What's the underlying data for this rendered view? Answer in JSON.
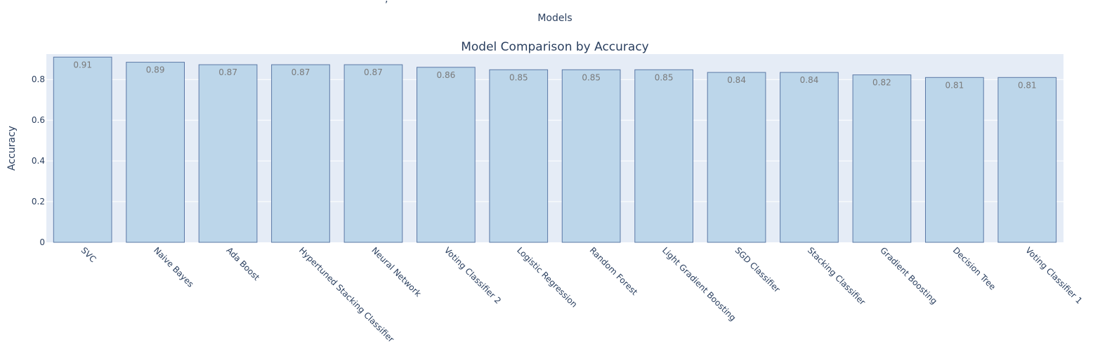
{
  "top_cut_text": ",",
  "top_label": "Models",
  "chart_data": {
    "type": "bar",
    "title": "Model Comparison by Accuracy",
    "xlabel": "",
    "ylabel": "Accuracy",
    "ylim": [
      0,
      0.925
    ],
    "yticks": [
      0,
      0.2,
      0.4,
      0.6,
      0.8
    ],
    "ytick_labels": [
      "0",
      "0.2",
      "0.4",
      "0.6",
      "0.8"
    ],
    "grid": true,
    "categories": [
      "SVC",
      "Naive Bayes",
      "Ada Boost",
      "Hypertuned Stacking Classifier",
      "Neural Network",
      "Voting Classifier 2",
      "Logistic Regression",
      "Random Forest",
      "Light Gradient Boosting",
      "SGD Classifier",
      "Stacking Classifier",
      "Gradient Boosting",
      "Decision Tree",
      "Voting Classifier 1"
    ],
    "values": [
      0.91,
      0.885,
      0.873,
      0.873,
      0.873,
      0.86,
      0.848,
      0.848,
      0.848,
      0.835,
      0.835,
      0.823,
      0.81,
      0.81
    ],
    "value_labels": [
      "0.91",
      "0.89",
      "0.87",
      "0.87",
      "0.87",
      "0.86",
      "0.85",
      "0.85",
      "0.85",
      "0.84",
      "0.84",
      "0.82",
      "0.81",
      "0.81"
    ],
    "colors": {
      "bar_fill": "#bcd6ea",
      "bar_stroke": "#5b78a6",
      "plot_bg": "#e5ecf6",
      "grid": "#ffffff",
      "text": "#2a3f5f",
      "value_text": "#7a7a7a"
    }
  }
}
